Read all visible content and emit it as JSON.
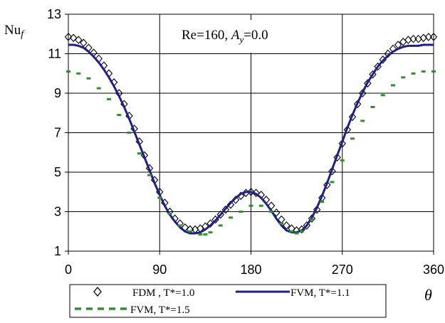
{
  "chart_data": {
    "type": "line",
    "title": "",
    "ylabel": "Nu",
    "ylabel_subscript": "f",
    "xlabel": "θ",
    "annotation": {
      "re_part": "Re=160, ",
      "a_letter": "A",
      "a_subscript": "y",
      "a_value": "=0.0"
    },
    "xlim": [
      0,
      360
    ],
    "ylim": [
      1,
      13
    ],
    "xticks": [
      0,
      90,
      180,
      270,
      360
    ],
    "yticks": [
      1,
      3,
      5,
      7,
      9,
      11,
      13
    ],
    "vertical_gridlines": [
      90,
      180,
      270
    ],
    "horizontal_gridlines": [
      3,
      5,
      7,
      9,
      11
    ],
    "legend_position": "bottom",
    "series": [
      {
        "name": "FDM , T*=1.0",
        "style": "diamond-markers",
        "color": "#000000",
        "x": [
          0,
          5,
          10,
          15,
          20,
          25,
          30,
          35,
          40,
          45,
          50,
          55,
          60,
          65,
          70,
          75,
          80,
          85,
          90,
          95,
          100,
          105,
          110,
          115,
          120,
          125,
          130,
          135,
          140,
          145,
          150,
          155,
          160,
          165,
          170,
          175,
          180,
          185,
          190,
          195,
          200,
          205,
          210,
          215,
          220,
          225,
          230,
          235,
          240,
          245,
          250,
          255,
          260,
          265,
          270,
          275,
          280,
          285,
          290,
          295,
          300,
          305,
          310,
          315,
          320,
          325,
          330,
          335,
          340,
          345,
          350,
          355,
          360
        ],
        "y": [
          11.85,
          11.8,
          11.7,
          11.55,
          11.3,
          11.05,
          10.75,
          10.4,
          10.0,
          9.55,
          9.0,
          8.45,
          7.85,
          7.2,
          6.55,
          5.85,
          5.2,
          4.6,
          4.0,
          3.45,
          3.0,
          2.65,
          2.4,
          2.2,
          2.1,
          2.1,
          2.15,
          2.25,
          2.4,
          2.6,
          2.85,
          3.1,
          3.35,
          3.6,
          3.8,
          3.95,
          4.0,
          3.95,
          3.85,
          3.6,
          3.3,
          2.95,
          2.6,
          2.3,
          2.15,
          2.05,
          2.1,
          2.3,
          2.65,
          3.1,
          3.7,
          4.35,
          5.05,
          5.75,
          6.45,
          7.15,
          7.8,
          8.45,
          9.0,
          9.5,
          9.95,
          10.35,
          10.7,
          11.0,
          11.25,
          11.45,
          11.6,
          11.7,
          11.75,
          11.75,
          11.8,
          11.85,
          11.85
        ]
      },
      {
        "name": "FVM, T*=1.1",
        "style": "solid-line",
        "color": "#1f1f8c",
        "x": [
          0,
          5,
          10,
          15,
          20,
          25,
          30,
          35,
          40,
          45,
          50,
          55,
          60,
          65,
          70,
          75,
          80,
          85,
          90,
          95,
          100,
          105,
          110,
          115,
          120,
          125,
          130,
          135,
          140,
          145,
          150,
          155,
          160,
          165,
          170,
          175,
          180,
          185,
          190,
          195,
          200,
          205,
          210,
          215,
          220,
          225,
          230,
          235,
          240,
          245,
          250,
          255,
          260,
          265,
          270,
          275,
          280,
          285,
          290,
          295,
          300,
          305,
          310,
          315,
          320,
          325,
          330,
          335,
          340,
          345,
          350,
          355,
          360
        ],
        "y": [
          11.45,
          11.45,
          11.4,
          11.3,
          11.1,
          10.85,
          10.55,
          10.2,
          9.8,
          9.35,
          8.85,
          8.3,
          7.7,
          7.05,
          6.4,
          5.75,
          5.1,
          4.45,
          3.85,
          3.3,
          2.85,
          2.5,
          2.2,
          2.0,
          1.9,
          1.9,
          1.95,
          2.1,
          2.3,
          2.55,
          2.85,
          3.15,
          3.45,
          3.7,
          3.9,
          4.0,
          4.0,
          3.9,
          3.7,
          3.4,
          3.05,
          2.65,
          2.3,
          2.05,
          1.95,
          1.95,
          2.05,
          2.3,
          2.7,
          3.2,
          3.8,
          4.45,
          5.15,
          5.85,
          6.55,
          7.25,
          7.9,
          8.5,
          9.05,
          9.55,
          9.95,
          10.35,
          10.65,
          10.9,
          11.1,
          11.25,
          11.35,
          11.4,
          11.4,
          11.4,
          11.45,
          11.45,
          11.45
        ]
      },
      {
        "name": "FVM, T*=1.5",
        "style": "dashed-markers",
        "color": "#2f8f2f",
        "x": [
          0,
          10,
          20,
          30,
          40,
          50,
          60,
          70,
          80,
          90,
          100,
          110,
          120,
          130,
          135,
          140,
          150,
          160,
          170,
          180,
          190,
          200,
          210,
          220,
          225,
          230,
          240,
          250,
          260,
          270,
          280,
          290,
          300,
          310,
          320,
          330,
          340,
          350,
          360
        ],
        "y": [
          10.1,
          10.0,
          9.75,
          9.25,
          8.7,
          7.9,
          7.0,
          5.95,
          4.85,
          3.7,
          2.9,
          2.3,
          2.0,
          1.85,
          1.85,
          1.95,
          2.3,
          2.7,
          3.0,
          3.3,
          3.3,
          3.0,
          2.4,
          2.0,
          1.9,
          2.0,
          2.6,
          3.5,
          4.5,
          5.6,
          6.7,
          7.6,
          8.3,
          8.9,
          9.4,
          9.8,
          10.0,
          10.1,
          10.1
        ]
      }
    ]
  }
}
